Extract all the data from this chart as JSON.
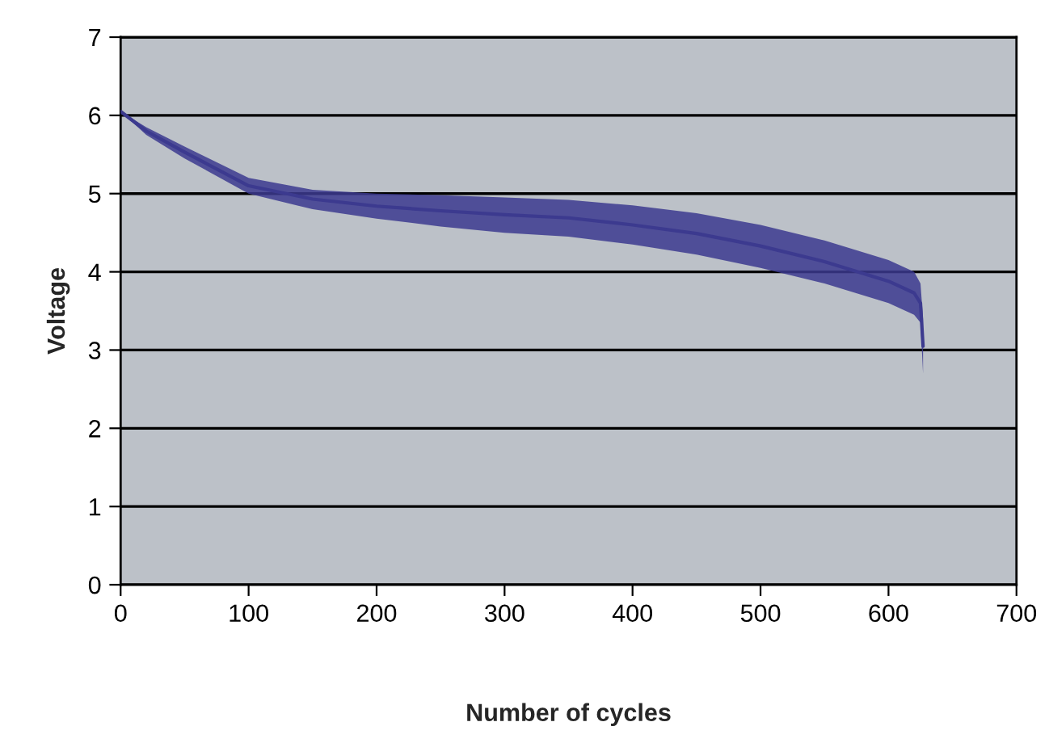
{
  "chart_data": {
    "type": "line",
    "xlabel": "Number of cycles",
    "ylabel": "Voltage",
    "xlim": [
      0,
      700
    ],
    "ylim": [
      0,
      7
    ],
    "xticks": [
      0,
      100,
      200,
      300,
      400,
      500,
      600,
      700
    ],
    "yticks": [
      0,
      1,
      2,
      3,
      4,
      5,
      6,
      7
    ],
    "grid": "y",
    "marker": "none",
    "line_style": "solid",
    "series": [
      {
        "color": "#3c3a8f",
        "x": [
          0,
          20,
          50,
          100,
          150,
          200,
          250,
          300,
          350,
          400,
          450,
          500,
          550,
          600,
          620,
          625,
          627
        ],
        "values": [
          6.05,
          5.8,
          5.53,
          5.1,
          4.93,
          4.84,
          4.78,
          4.73,
          4.69,
          4.6,
          4.49,
          4.33,
          4.13,
          3.88,
          3.73,
          3.6,
          3.05
        ],
        "lower": [
          6.05,
          5.75,
          5.45,
          5.0,
          4.8,
          4.68,
          4.58,
          4.5,
          4.45,
          4.35,
          4.22,
          4.05,
          3.85,
          3.6,
          3.45,
          3.35,
          2.7
        ],
        "upper": [
          6.05,
          5.85,
          5.6,
          5.2,
          5.05,
          5.0,
          4.98,
          4.95,
          4.92,
          4.85,
          4.75,
          4.6,
          4.4,
          4.15,
          4.0,
          3.85,
          3.4
        ]
      }
    ]
  }
}
